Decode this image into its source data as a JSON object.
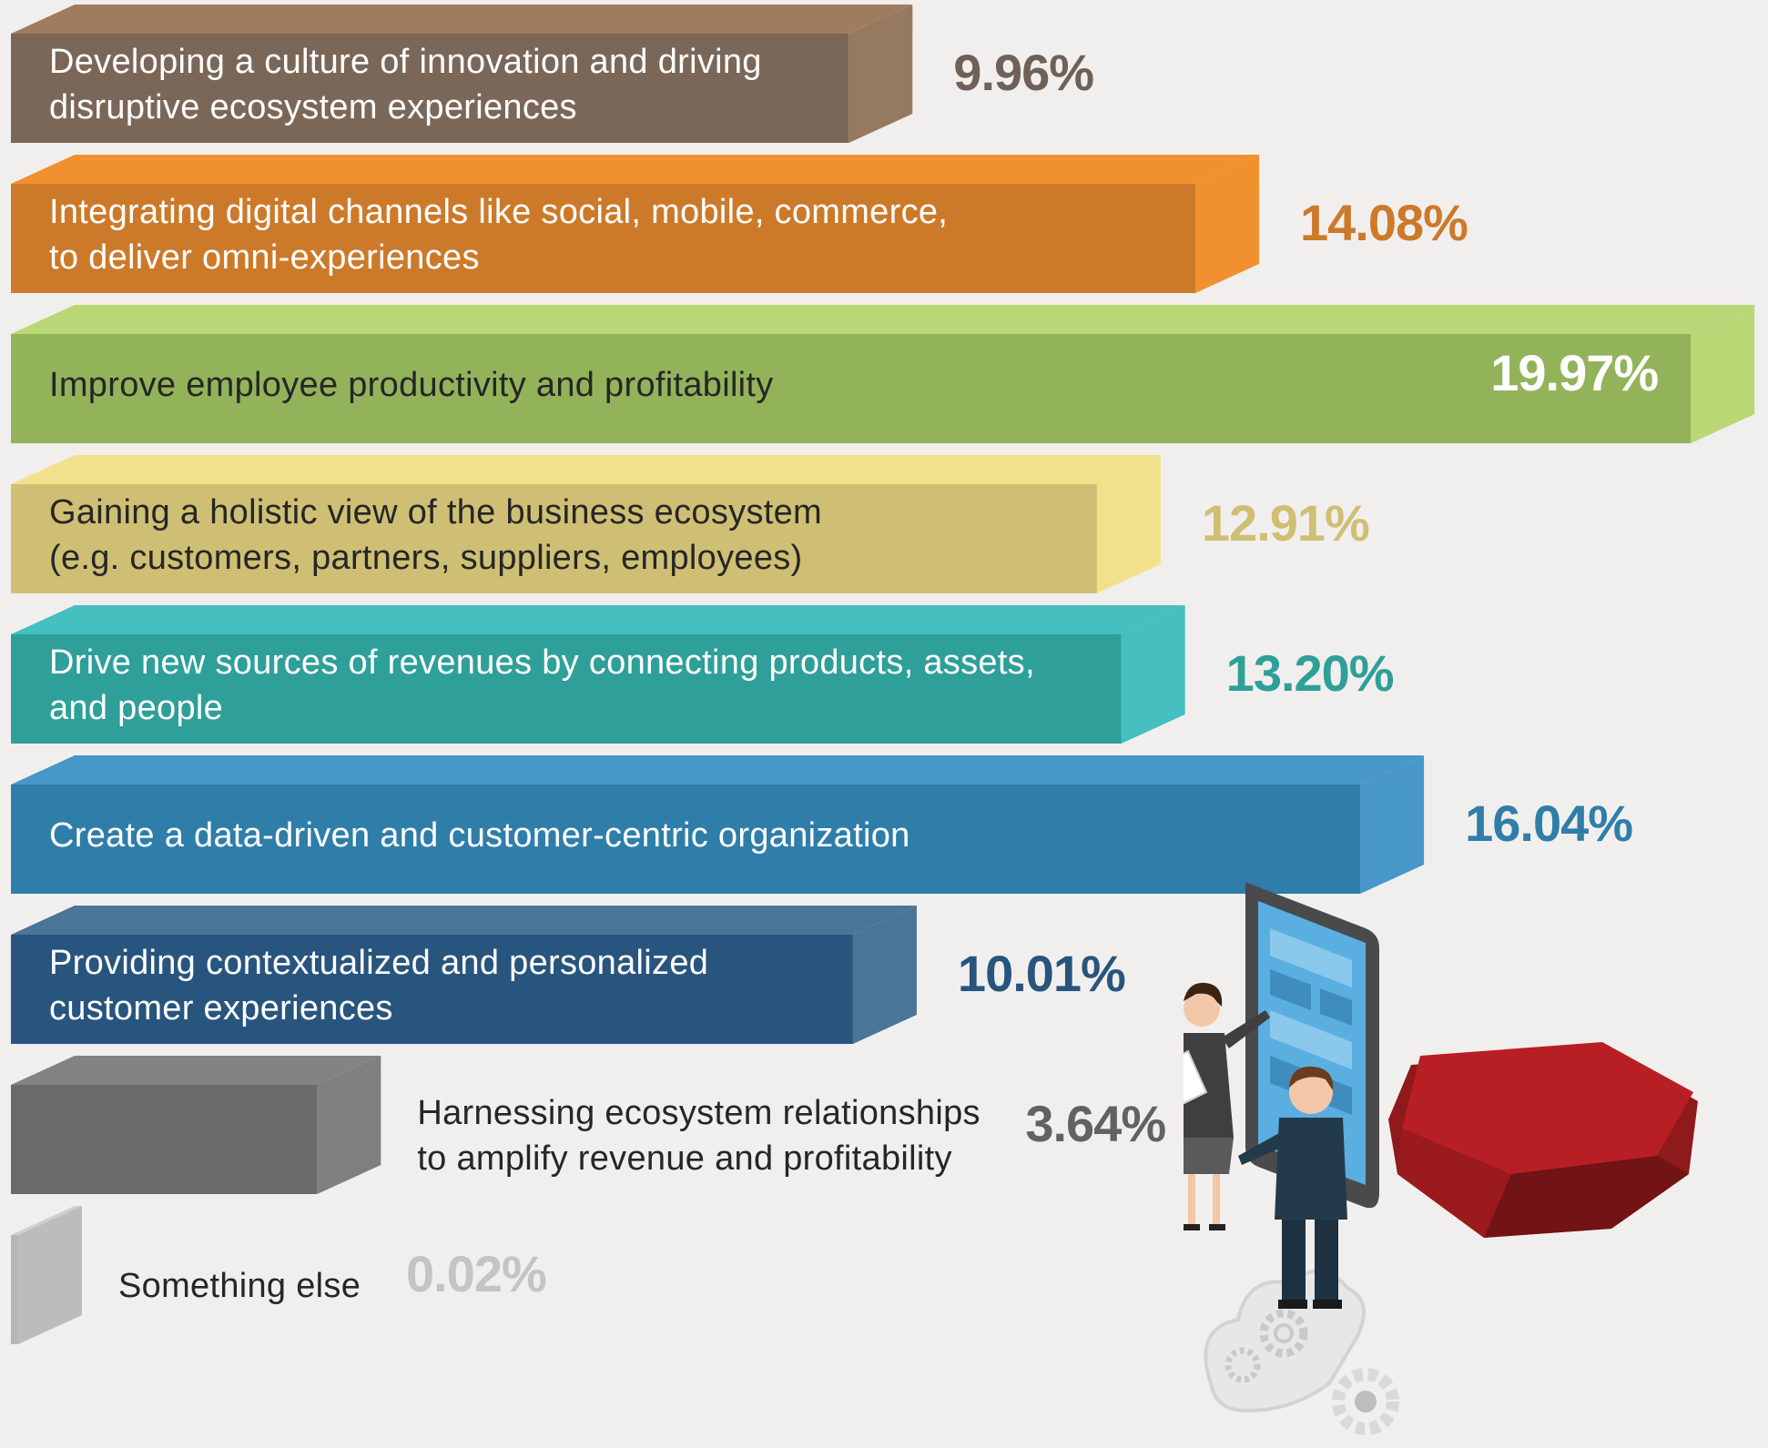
{
  "chart_data": {
    "type": "bar",
    "orientation": "horizontal",
    "style": "3d",
    "unit": "%",
    "categories": [
      "Developing a culture of innovation and driving\ndisruptive ecosystem experiences",
      "Integrating digital channels like social, mobile, commerce,\nto deliver omni-experiences",
      "Improve employee productivity and profitability",
      "Gaining a holistic view of the business ecosystem\n(e.g. customers, partners, suppliers, employees)",
      "Drive new sources of revenues by connecting products, assets,\nand people",
      "Create a data-driven and customer-centric organization",
      "Providing contextualized and personalized\ncustomer experiences",
      "Harnessing ecosystem relationships\nto amplify revenue and profitability",
      "Something else"
    ],
    "values": [
      9.96,
      14.08,
      19.97,
      12.91,
      13.2,
      16.04,
      10.01,
      3.64,
      0.02
    ],
    "value_labels": [
      "9.96%",
      "14.08%",
      "19.97%",
      "12.91%",
      "13.20%",
      "16.04%",
      "10.01%",
      "3.64%",
      "0.02%"
    ],
    "colors": [
      {
        "front": "#7b6758",
        "top": "#a07c5e",
        "side": "#957a60",
        "text": "#6f6058"
      },
      {
        "front": "#cc7a2a",
        "top": "#f0902f",
        "side": "#f0902f",
        "text": "#cc7a2a"
      },
      {
        "front": "#93b35a",
        "top": "#b9d775",
        "side": "#b9d775",
        "text": "#ffffff"
      },
      {
        "front": "#cfbf74",
        "top": "#f1e18b",
        "side": "#f1e18b",
        "text": "#cfbf74"
      },
      {
        "front": "#2f9f99",
        "top": "#45bfbf",
        "side": "#45bfbf",
        "text": "#2f9f99"
      },
      {
        "front": "#2f7ea9",
        "top": "#4797c8",
        "side": "#4797c8",
        "text": "#2f7ea9"
      },
      {
        "front": "#28557d",
        "top": "#4a7498",
        "side": "#4a7498",
        "text": "#28557d"
      },
      {
        "front": "#6a6a6c",
        "top": "#838385",
        "side": "#7f7f81",
        "text": "#626264"
      },
      {
        "front": "#b6b6b7",
        "top": "#cfcfd0",
        "side": "#bcbcbd",
        "text": "#c4c4c4"
      }
    ],
    "label_colors": [
      "light",
      "light",
      "dark",
      "dark",
      "light",
      "light",
      "light",
      "dark",
      "dark"
    ],
    "value_inside": [
      false,
      false,
      true,
      false,
      false,
      false,
      false,
      false,
      false
    ],
    "label_outside": [
      false,
      false,
      false,
      false,
      false,
      false,
      false,
      true,
      true
    ],
    "xlim": [
      0,
      20
    ],
    "grid": false,
    "legend": "none"
  },
  "illustration": {
    "icons": [
      "tablet-icon",
      "businesswoman-icon",
      "businessman-icon",
      "pedestal-icon",
      "cloud-gears-icon",
      "gear-icon"
    ]
  }
}
